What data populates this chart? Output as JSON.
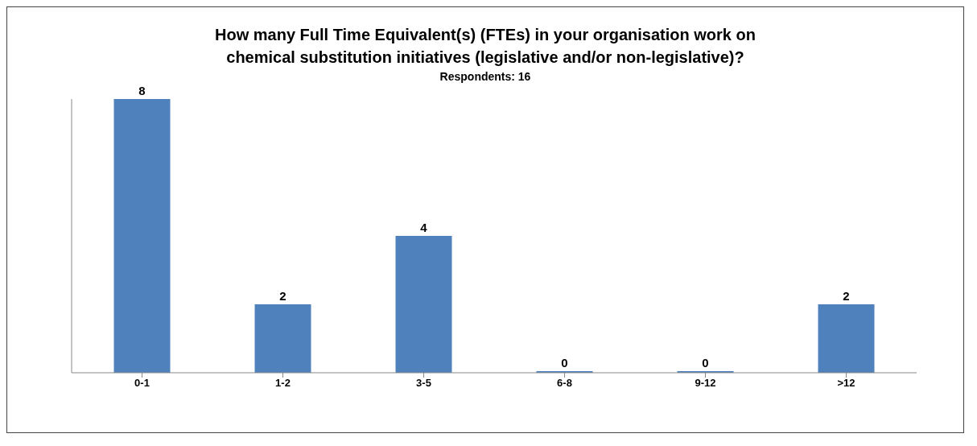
{
  "chart_data": {
    "type": "bar",
    "title": "How many Full Time Equivalent(s) (FTEs) in your organisation work on\nchemical substitution initiatives (legislative and/or non-legislative)?",
    "subtitle": "Respondents: 16",
    "categories": [
      "0-1",
      "1-2",
      "3-5",
      "6-8",
      "9-12",
      ">12"
    ],
    "values": [
      8,
      2,
      4,
      0,
      0,
      2
    ],
    "color": "#4f81bd",
    "ylim": [
      0,
      8
    ],
    "tick_labels": "x",
    "data_labels": true
  }
}
